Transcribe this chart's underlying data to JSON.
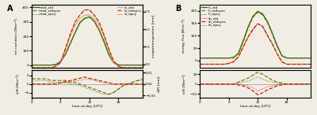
{
  "hours": [
    0,
    1,
    2,
    3,
    4,
    5,
    6,
    7,
    8,
    9,
    10,
    11,
    12,
    13,
    14,
    15,
    16,
    17,
    18,
    19,
    20,
    21,
    22,
    23
  ],
  "A_nrad_ztd": [
    0,
    0,
    0,
    0,
    0,
    3,
    25,
    75,
    150,
    225,
    295,
    325,
    335,
    305,
    245,
    165,
    75,
    18,
    1,
    0,
    0,
    0,
    0,
    0
  ],
  "A_nrad_ztdsyns": [
    0,
    0,
    0,
    0,
    0,
    3,
    24,
    73,
    148,
    223,
    293,
    323,
    333,
    303,
    243,
    163,
    73,
    16,
    1,
    0,
    0,
    0,
    0,
    0
  ],
  "A_nrad_opcy": [
    0,
    0,
    0,
    0,
    0,
    3,
    24,
    74,
    149,
    224,
    294,
    324,
    334,
    304,
    244,
    164,
    74,
    17,
    1,
    0,
    0,
    0,
    0,
    0
  ],
  "A_et_ztd": [
    -0.02,
    -0.02,
    -0.02,
    -0.02,
    -0.02,
    -0.01,
    0.01,
    0.08,
    0.16,
    0.22,
    0.26,
    0.28,
    0.28,
    0.26,
    0.22,
    0.16,
    0.08,
    0.01,
    -0.01,
    -0.02,
    -0.02,
    -0.02,
    -0.02,
    -0.02
  ],
  "A_et_ztdsyns": [
    -0.02,
    -0.02,
    -0.02,
    -0.02,
    -0.02,
    -0.01,
    0.01,
    0.09,
    0.17,
    0.24,
    0.28,
    0.31,
    0.31,
    0.28,
    0.24,
    0.17,
    0.09,
    0.02,
    -0.01,
    -0.02,
    -0.02,
    -0.02,
    -0.02,
    -0.02
  ],
  "A_et_opcy": [
    -0.02,
    -0.02,
    -0.02,
    -0.02,
    -0.02,
    -0.01,
    0.01,
    0.09,
    0.17,
    0.24,
    0.28,
    0.31,
    0.31,
    0.28,
    0.24,
    0.17,
    0.09,
    0.02,
    -0.01,
    -0.02,
    -0.02,
    -0.02,
    -0.02,
    -0.02
  ],
  "A_diff_nrad_ztdsyns": [
    3,
    3,
    3,
    3,
    2,
    2,
    2,
    2,
    1,
    1,
    0,
    -1,
    -2,
    -3,
    -4,
    -5,
    -6,
    -5,
    -3,
    -1,
    0,
    1,
    2,
    3
  ],
  "A_diff_nrad_opcy": [
    2,
    2,
    2,
    2,
    1,
    1,
    1,
    1,
    0,
    0,
    -1,
    -2,
    -3,
    -4,
    -5,
    -6,
    -6,
    -5,
    -3,
    -1,
    0,
    1,
    2,
    2
  ],
  "A_diff_et_ztdsyns": [
    0.0,
    0.0,
    0.0,
    0.0,
    0.0,
    0.0,
    0.001,
    0.002,
    0.003,
    0.004,
    0.005,
    0.006,
    0.005,
    0.004,
    0.003,
    0.002,
    0.001,
    0.0,
    0.0,
    0.0,
    0.0,
    0.0,
    0.0,
    0.0
  ],
  "A_diff_et_opcy": [
    0.0,
    0.0,
    0.0,
    0.0,
    0.0,
    0.0,
    0.001,
    0.001,
    0.002,
    0.003,
    0.003,
    0.004,
    0.004,
    0.003,
    0.002,
    0.001,
    0.001,
    0.0,
    0.0,
    0.0,
    0.0,
    0.0,
    0.0,
    0.0
  ],
  "B_lh_ztd": [
    10,
    10,
    10,
    10,
    10,
    10,
    10,
    12,
    30,
    80,
    135,
    178,
    198,
    188,
    158,
    112,
    62,
    20,
    10,
    10,
    10,
    10,
    10,
    10
  ],
  "B_lh_ztdsyns": [
    10,
    10,
    10,
    10,
    10,
    10,
    10,
    11,
    28,
    76,
    131,
    174,
    194,
    184,
    154,
    108,
    58,
    19,
    10,
    10,
    10,
    10,
    10,
    10
  ],
  "B_lh_opcy": [
    10,
    10,
    10,
    10,
    10,
    10,
    10,
    12,
    29,
    79,
    134,
    177,
    197,
    187,
    157,
    111,
    61,
    20,
    10,
    10,
    10,
    10,
    10,
    10
  ],
  "B_sh_ztd": [
    -15,
    -15,
    -15,
    -15,
    -15,
    -15,
    -12,
    -5,
    15,
    55,
    95,
    125,
    148,
    138,
    102,
    68,
    28,
    -5,
    -15,
    -15,
    -15,
    -15,
    -15,
    -15
  ],
  "B_sh_ztdsyns": [
    -15,
    -15,
    -15,
    -15,
    -15,
    -15,
    -12,
    -5,
    15,
    55,
    95,
    125,
    148,
    138,
    102,
    68,
    28,
    -5,
    -15,
    -15,
    -15,
    -15,
    -15,
    -15
  ],
  "B_sh_opcy": [
    -15,
    -15,
    -15,
    -15,
    -15,
    -15,
    -12,
    -5,
    15,
    55,
    95,
    125,
    148,
    138,
    102,
    68,
    28,
    -5,
    -15,
    -15,
    -15,
    -15,
    -15,
    -15
  ],
  "B_diff_lh_ztdsyns": [
    0,
    0,
    0,
    0,
    0,
    0,
    0,
    0,
    2,
    4,
    6,
    9,
    12,
    10,
    7,
    4,
    2,
    1,
    0,
    0,
    0,
    0,
    0,
    0
  ],
  "B_diff_lh_opcy": [
    0,
    0,
    0,
    0,
    0,
    0,
    0,
    0,
    1,
    2,
    3,
    5,
    7,
    5,
    3,
    2,
    1,
    0,
    0,
    0,
    0,
    0,
    0,
    0
  ],
  "B_diff_sh_ztdsyns": [
    0,
    0,
    0,
    0,
    0,
    0,
    0,
    0,
    -1,
    -2,
    -4,
    -7,
    -11,
    -9,
    -6,
    -4,
    -2,
    -1,
    0,
    0,
    0,
    0,
    0,
    0
  ],
  "B_diff_sh_opcy": [
    0,
    0,
    0,
    0,
    0,
    0,
    0,
    0,
    0,
    -1,
    -2,
    -4,
    -7,
    -5,
    -3,
    -2,
    -1,
    0,
    0,
    0,
    0,
    0,
    0,
    0
  ],
  "color_dark_green": "#1a6b1a",
  "color_olive": "#7a7a00",
  "color_light_orange": "#e8a878",
  "color_dark_red": "#cc2200",
  "color_bg": "#f2ede4"
}
